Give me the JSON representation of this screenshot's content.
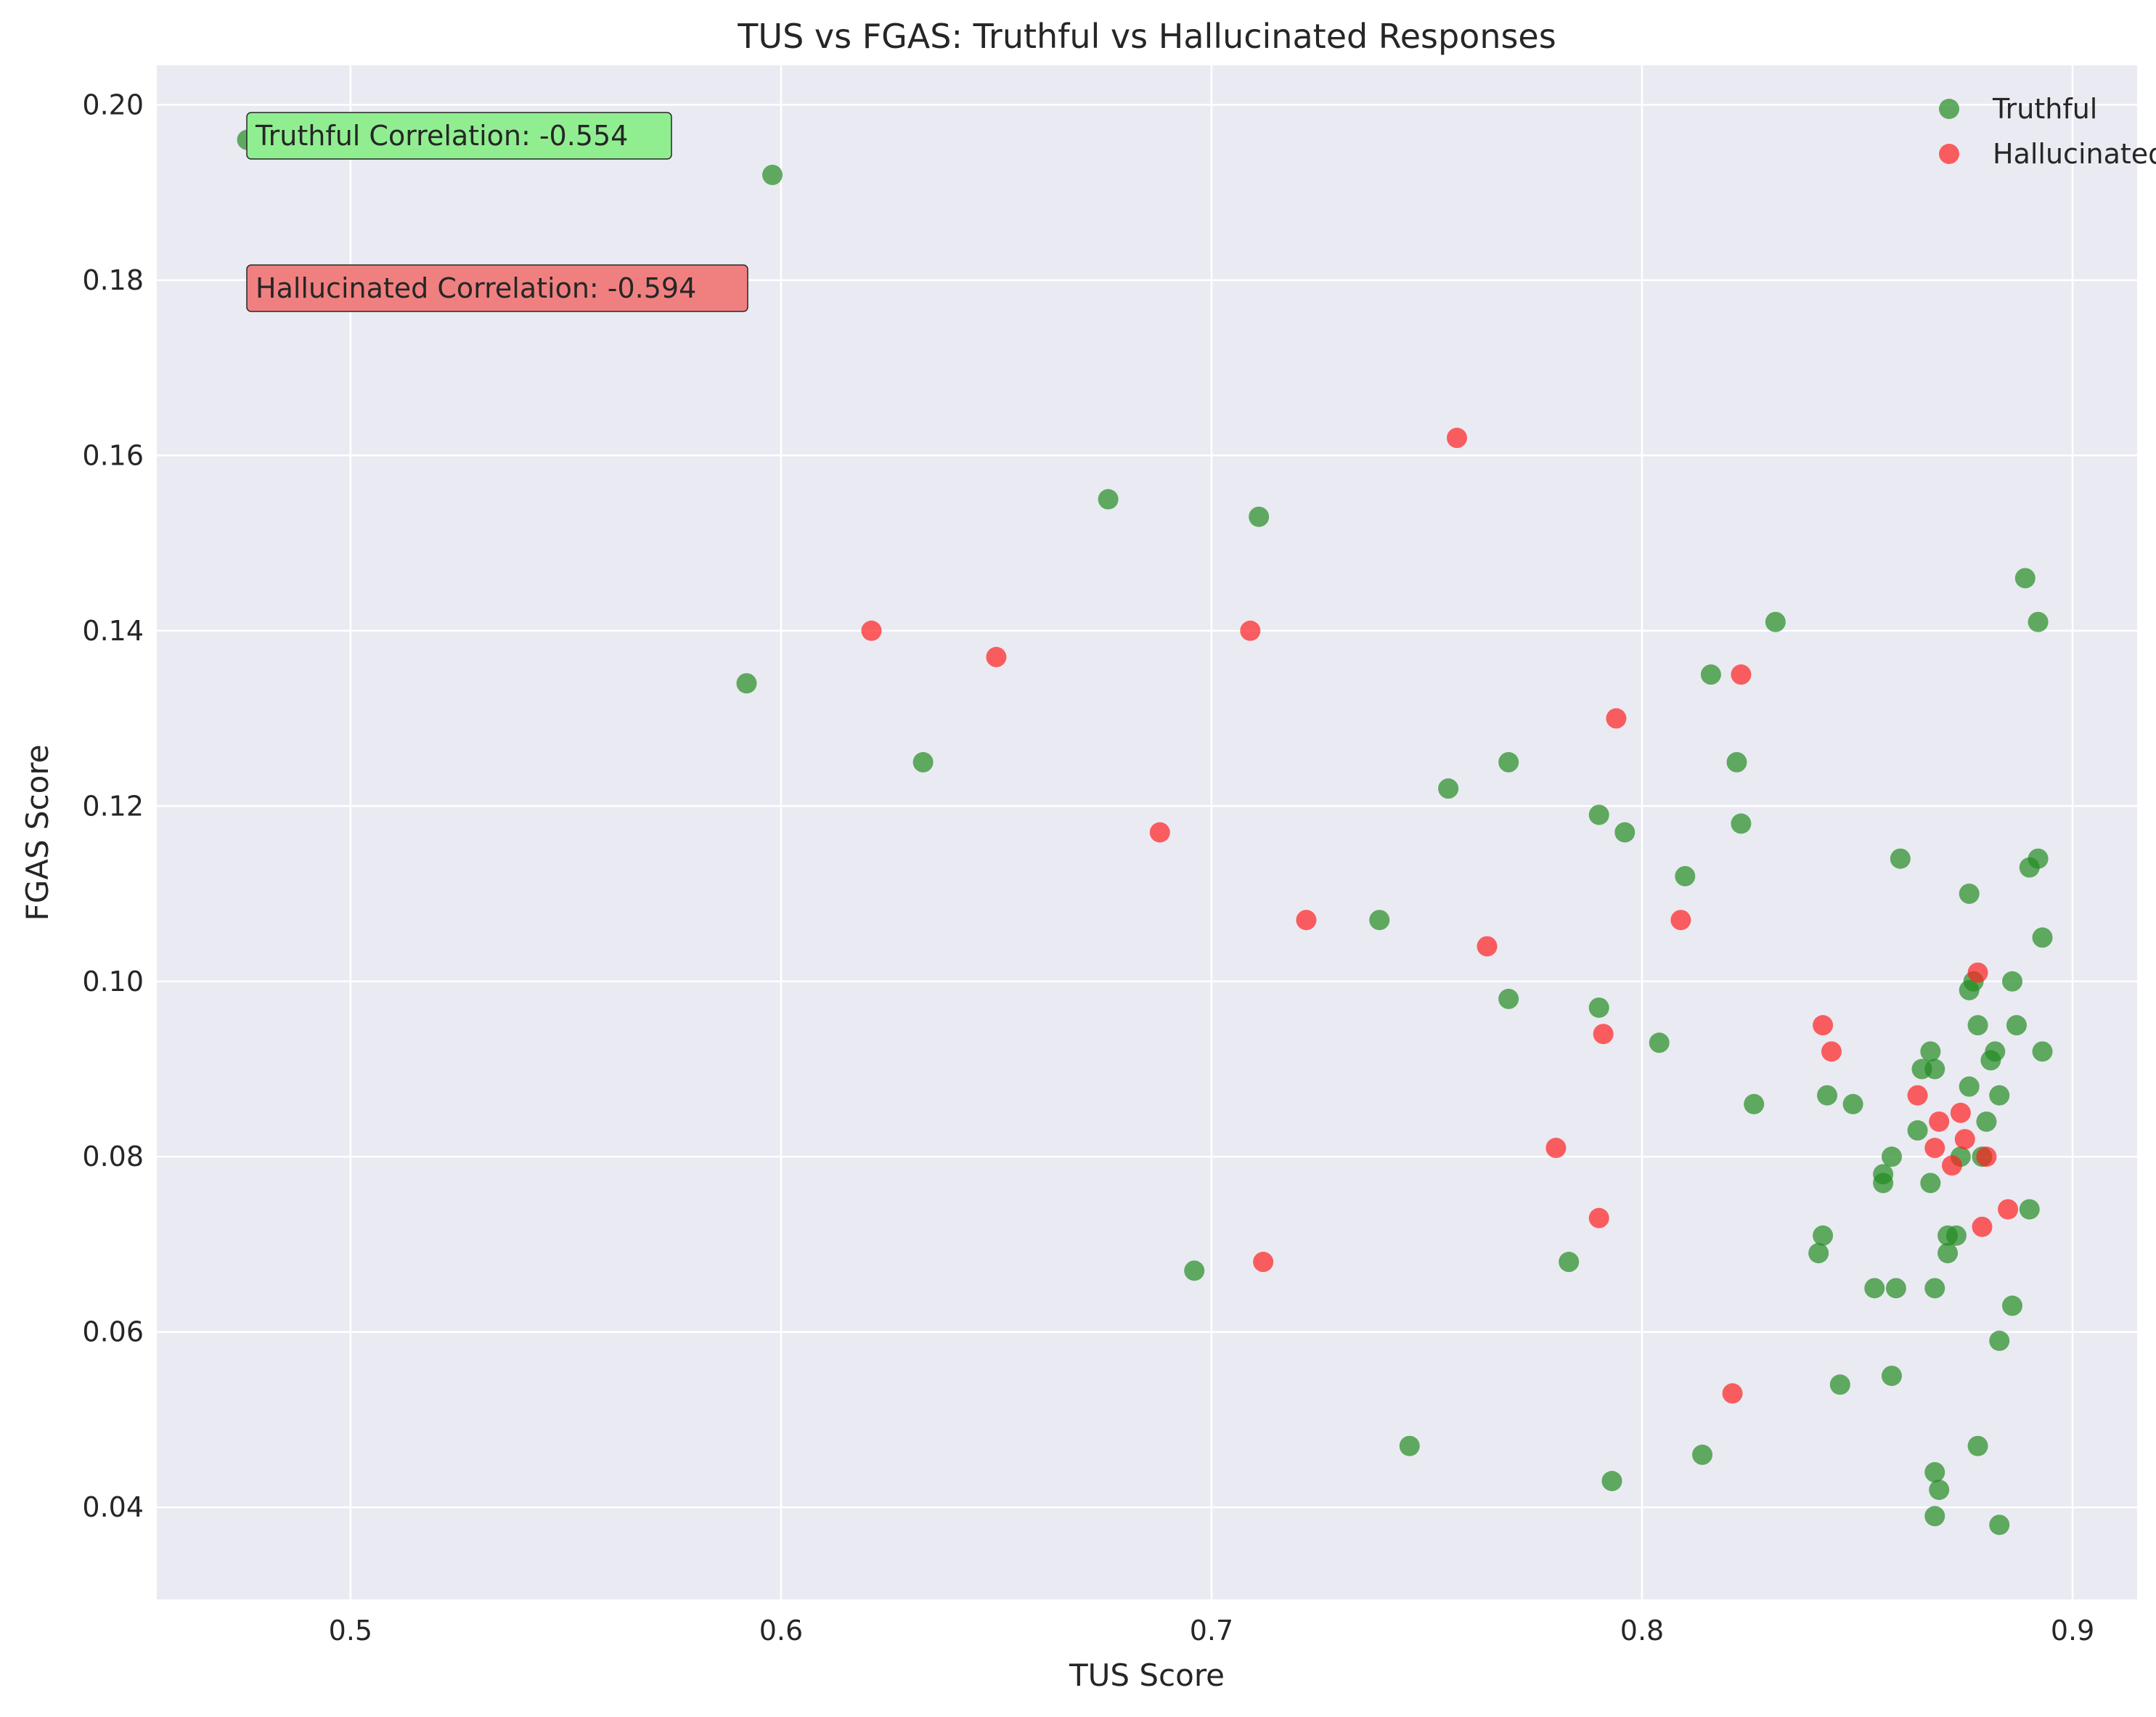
{
  "chart_data": {
    "type": "scatter",
    "title": "TUS vs FGAS: Truthful vs Hallucinated Responses",
    "xlabel": "TUS Score",
    "ylabel": "FGAS Score",
    "xlim": [
      0.455,
      0.915
    ],
    "ylim": [
      0.0295,
      0.2045
    ],
    "xticks": [
      0.5,
      0.6,
      0.7,
      0.8,
      0.9
    ],
    "xtick_labels": [
      "0.5",
      "0.6",
      "0.7",
      "0.8",
      "0.9"
    ],
    "yticks": [
      0.04,
      0.06,
      0.08,
      0.1,
      0.12,
      0.14,
      0.16,
      0.18,
      0.2
    ],
    "ytick_labels": [
      "0.04",
      "0.06",
      "0.08",
      "0.10",
      "0.12",
      "0.14",
      "0.16",
      "0.18",
      "0.20"
    ],
    "grid": true,
    "legend_position": "top-right",
    "series": [
      {
        "name": "Truthful",
        "color": "#228b22",
        "points": [
          [
            0.476,
            0.196
          ],
          [
            0.598,
            0.192
          ],
          [
            0.676,
            0.155
          ],
          [
            0.711,
            0.153
          ],
          [
            0.592,
            0.134
          ],
          [
            0.633,
            0.125
          ],
          [
            0.696,
            0.067
          ],
          [
            0.739,
            0.107
          ],
          [
            0.746,
            0.047
          ],
          [
            0.755,
            0.122
          ],
          [
            0.769,
            0.125
          ],
          [
            0.769,
            0.098
          ],
          [
            0.783,
            0.068
          ],
          [
            0.79,
            0.119
          ],
          [
            0.79,
            0.097
          ],
          [
            0.793,
            0.043
          ],
          [
            0.796,
            0.117
          ],
          [
            0.804,
            0.093
          ],
          [
            0.81,
            0.112
          ],
          [
            0.814,
            0.046
          ],
          [
            0.816,
            0.135
          ],
          [
            0.822,
            0.125
          ],
          [
            0.823,
            0.118
          ],
          [
            0.826,
            0.086
          ],
          [
            0.831,
            0.141
          ],
          [
            0.841,
            0.069
          ],
          [
            0.842,
            0.071
          ],
          [
            0.843,
            0.087
          ],
          [
            0.846,
            0.054
          ],
          [
            0.849,
            0.086
          ],
          [
            0.854,
            0.065
          ],
          [
            0.856,
            0.078
          ],
          [
            0.856,
            0.077
          ],
          [
            0.858,
            0.08
          ],
          [
            0.858,
            0.055
          ],
          [
            0.859,
            0.065
          ],
          [
            0.86,
            0.114
          ],
          [
            0.864,
            0.083
          ],
          [
            0.865,
            0.09
          ],
          [
            0.867,
            0.092
          ],
          [
            0.868,
            0.09
          ],
          [
            0.867,
            0.077
          ],
          [
            0.868,
            0.065
          ],
          [
            0.868,
            0.044
          ],
          [
            0.869,
            0.042
          ],
          [
            0.868,
            0.039
          ],
          [
            0.871,
            0.069
          ],
          [
            0.871,
            0.071
          ],
          [
            0.873,
            0.071
          ],
          [
            0.874,
            0.08
          ],
          [
            0.876,
            0.11
          ],
          [
            0.876,
            0.099
          ],
          [
            0.877,
            0.1
          ],
          [
            0.876,
            0.088
          ],
          [
            0.878,
            0.095
          ],
          [
            0.878,
            0.047
          ],
          [
            0.879,
            0.08
          ],
          [
            0.88,
            0.084
          ],
          [
            0.881,
            0.091
          ],
          [
            0.882,
            0.092
          ],
          [
            0.883,
            0.087
          ],
          [
            0.883,
            0.059
          ],
          [
            0.883,
            0.038
          ],
          [
            0.886,
            0.1
          ],
          [
            0.886,
            0.063
          ],
          [
            0.887,
            0.095
          ],
          [
            0.889,
            0.146
          ],
          [
            0.89,
            0.113
          ],
          [
            0.89,
            0.074
          ],
          [
            0.892,
            0.114
          ],
          [
            0.892,
            0.141
          ],
          [
            0.893,
            0.105
          ],
          [
            0.893,
            0.092
          ]
        ]
      },
      {
        "name": "Hallucinated",
        "color": "#ff2020",
        "points": [
          [
            0.621,
            0.14
          ],
          [
            0.65,
            0.137
          ],
          [
            0.688,
            0.117
          ],
          [
            0.709,
            0.14
          ],
          [
            0.712,
            0.068
          ],
          [
            0.722,
            0.107
          ],
          [
            0.757,
            0.162
          ],
          [
            0.764,
            0.104
          ],
          [
            0.78,
            0.081
          ],
          [
            0.79,
            0.073
          ],
          [
            0.791,
            0.094
          ],
          [
            0.794,
            0.13
          ],
          [
            0.809,
            0.107
          ],
          [
            0.821,
            0.053
          ],
          [
            0.823,
            0.135
          ],
          [
            0.842,
            0.095
          ],
          [
            0.844,
            0.092
          ],
          [
            0.864,
            0.087
          ],
          [
            0.868,
            0.081
          ],
          [
            0.869,
            0.084
          ],
          [
            0.872,
            0.079
          ],
          [
            0.874,
            0.085
          ],
          [
            0.875,
            0.082
          ],
          [
            0.878,
            0.101
          ],
          [
            0.879,
            0.072
          ],
          [
            0.88,
            0.08
          ],
          [
            0.885,
            0.074
          ]
        ]
      }
    ],
    "annotations": [
      {
        "text": "Truthful Correlation: -0.554",
        "color": "#90ee90"
      },
      {
        "text": "Hallucinated Correlation: -0.594",
        "color": "#f08080"
      }
    ]
  }
}
